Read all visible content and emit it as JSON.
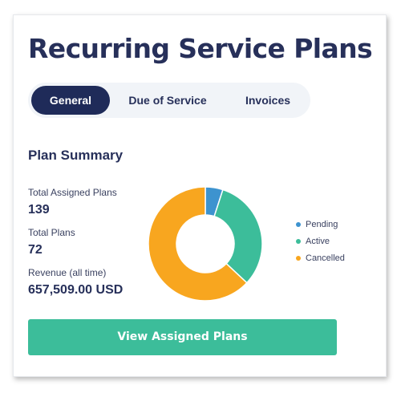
{
  "header": {
    "title": "Recurring Service Plans"
  },
  "tabs": [
    {
      "label": "General",
      "active": true
    },
    {
      "label": "Due of Service",
      "active": false
    },
    {
      "label": "Invoices",
      "active": false
    }
  ],
  "summary": {
    "title": "Plan Summary",
    "total_assigned_label": "Total Assigned Plans",
    "total_assigned_value": "139",
    "total_plans_label": "Total Plans",
    "total_plans_value": "72",
    "revenue_label": "Revenue (all time)",
    "revenue_value": "657,509.00 USD"
  },
  "chart_data": {
    "type": "pie",
    "style": "donut",
    "legend_position": "right",
    "categories": [
      "Pending",
      "Active",
      "Cancelled"
    ],
    "values": [
      5,
      32,
      63
    ],
    "colors": [
      "#3d93cf",
      "#3cbd9a",
      "#f8a61f"
    ]
  },
  "actions": {
    "view_assigned_label": "View Assigned Plans"
  },
  "colors": {
    "primary": "#1f2b59",
    "accent": "#3cbd9a",
    "title": "#27305a"
  }
}
